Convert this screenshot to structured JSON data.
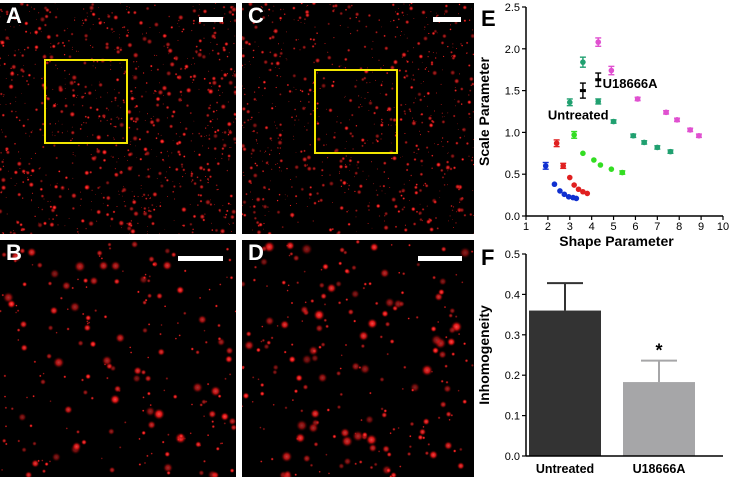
{
  "panels": {
    "a": {
      "letter": "A"
    },
    "b": {
      "letter": "B"
    },
    "c": {
      "letter": "C"
    },
    "d": {
      "letter": "D"
    }
  },
  "colors": {
    "background": "#000000",
    "spot": "#ff2020",
    "roi": "#f2e600",
    "scalebar": "#ffffff",
    "bar_untreated": "#333333",
    "bar_u18666a": "#a6a6a8"
  },
  "chart_data": [
    {
      "panel_letter": "E",
      "type": "scatter",
      "xlabel": "Shape Parameter",
      "ylabel": "Scale Parameter",
      "xlim": [
        1,
        10
      ],
      "ylim": [
        0.0,
        2.5
      ],
      "xticks": [
        "1",
        "2",
        "3",
        "4",
        "5",
        "6",
        "7",
        "8",
        "9",
        "10"
      ],
      "yticks": [
        "0.0",
        "0.5",
        "1.0",
        "1.5",
        "2.0",
        "2.5"
      ],
      "annotations": [
        {
          "text": "Untreated",
          "x": 2.0,
          "y": 1.2
        },
        {
          "text": "U18666A",
          "x": 4.5,
          "y": 1.58
        }
      ],
      "series": [
        {
          "color": "#1030d0",
          "points": [
            [
              1.9,
              0.6,
              0.04
            ],
            [
              2.3,
              0.38,
              0
            ],
            [
              2.55,
              0.3,
              0
            ],
            [
              2.75,
              0.26,
              0
            ],
            [
              2.95,
              0.23,
              0
            ],
            [
              3.15,
              0.22,
              0
            ],
            [
              3.3,
              0.21,
              0
            ]
          ]
        },
        {
          "color": "#e02020",
          "points": [
            [
              2.4,
              0.87,
              0.04
            ],
            [
              2.7,
              0.6,
              0.03
            ],
            [
              3.0,
              0.46,
              0
            ],
            [
              3.2,
              0.37,
              0
            ],
            [
              3.4,
              0.32,
              0
            ],
            [
              3.6,
              0.29,
              0
            ],
            [
              3.8,
              0.27,
              0
            ]
          ]
        },
        {
          "color": "#33dd22",
          "points": [
            [
              3.2,
              0.97,
              0.04
            ],
            [
              3.6,
              0.75,
              0
            ],
            [
              4.1,
              0.67,
              0
            ],
            [
              4.4,
              0.61,
              0
            ],
            [
              4.9,
              0.56,
              0
            ],
            [
              5.4,
              0.52,
              0.02
            ]
          ]
        },
        {
          "color": "#20a070",
          "points": [
            [
              3.0,
              1.36,
              0.04
            ],
            [
              3.6,
              1.84,
              0.06
            ],
            [
              4.3,
              1.37,
              0.03
            ],
            [
              5.0,
              1.13,
              0.02
            ],
            [
              5.9,
              0.96,
              0.02
            ],
            [
              6.4,
              0.88,
              0.02
            ],
            [
              7.0,
              0.82,
              0.02
            ],
            [
              7.6,
              0.77,
              0.02
            ]
          ]
        },
        {
          "color": "#e050d0",
          "points": [
            [
              4.3,
              2.08,
              0.05
            ],
            [
              4.9,
              1.74,
              0.05
            ],
            [
              6.1,
              1.4,
              0.02
            ],
            [
              7.4,
              1.24,
              0.02
            ],
            [
              7.9,
              1.15,
              0.02
            ],
            [
              8.5,
              1.03,
              0.02
            ],
            [
              8.9,
              0.96,
              0.02
            ]
          ]
        },
        {
          "color": "#000000",
          "points": [
            [
              3.6,
              1.5,
              0.09
            ],
            [
              4.3,
              1.63,
              0.08
            ]
          ]
        }
      ]
    },
    {
      "panel_letter": "F",
      "type": "bar",
      "ylabel": "Inhomogeneity",
      "ylim": [
        0.0,
        0.5
      ],
      "yticks": [
        "0.0",
        "0.1",
        "0.2",
        "0.3",
        "0.4",
        "0.5"
      ],
      "categories": [
        "Untreated",
        "U18666A"
      ],
      "values": [
        0.36,
        0.183
      ],
      "errors": [
        0.068,
        0.053
      ],
      "significance": [
        "",
        "*"
      ]
    }
  ]
}
